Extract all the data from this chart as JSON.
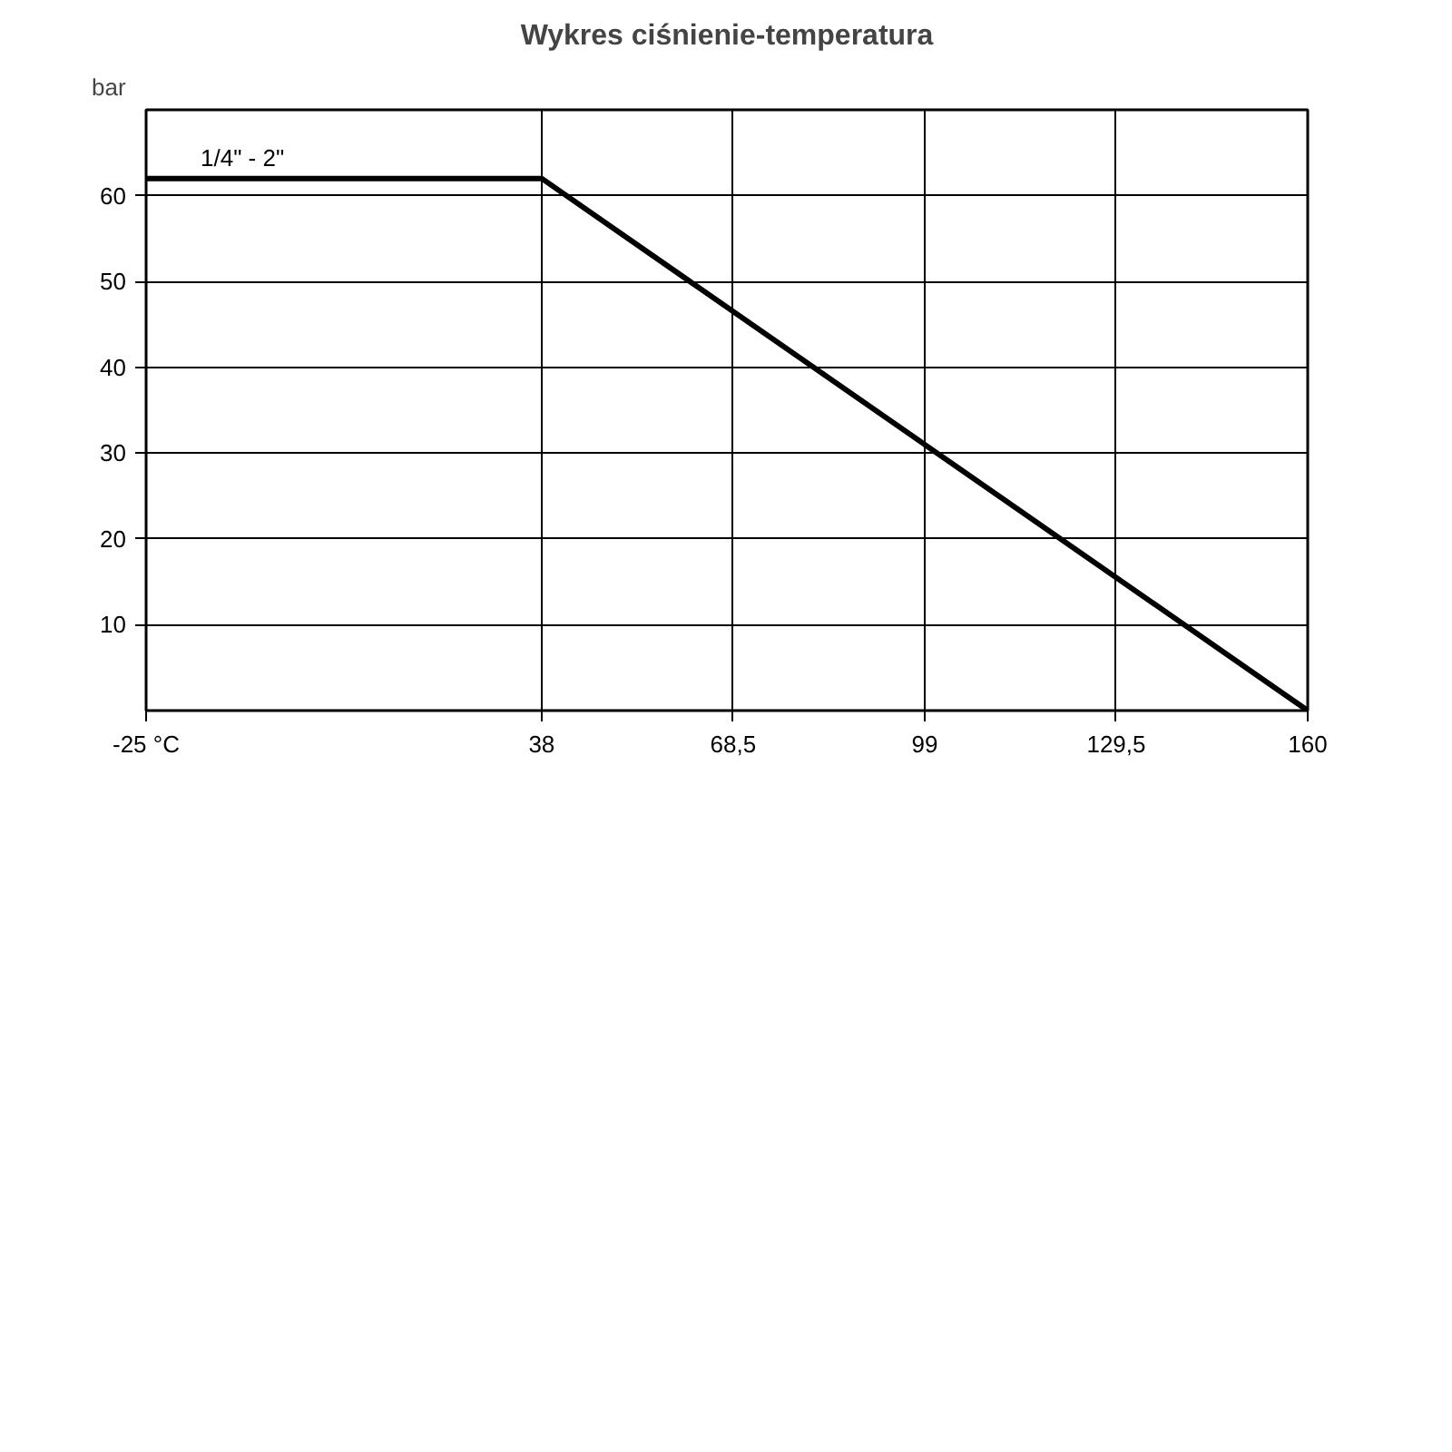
{
  "chart_data": {
    "type": "line",
    "title": "Wykres ciśnienie-temperatura",
    "ylabel": "bar",
    "x": [
      -25,
      38,
      160
    ],
    "series": [
      {
        "name": "1/4\" - 2\"",
        "color": "#000000",
        "values": [
          62,
          62,
          0
        ]
      }
    ],
    "xlim": [
      -25,
      160
    ],
    "ylim": [
      0,
      70
    ],
    "xticks": [
      {
        "value": -25,
        "label": "-25 °C"
      },
      38,
      {
        "value": 68.5,
        "label": "68,5"
      },
      99,
      {
        "value": 129.5,
        "label": "129,5"
      },
      160
    ],
    "yticks": [
      10,
      20,
      30,
      40,
      50,
      60
    ],
    "grid": true,
    "marker": "none",
    "line_style": "solid"
  }
}
